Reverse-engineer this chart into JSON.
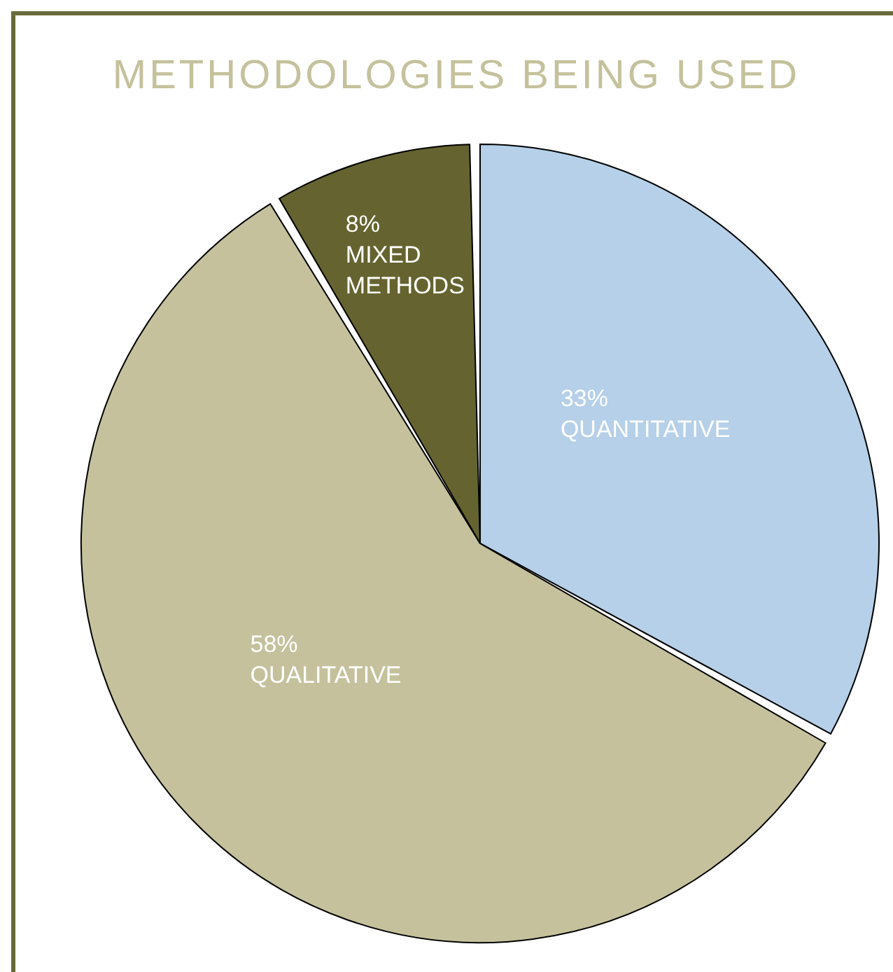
{
  "chart_data": {
    "type": "pie",
    "title": "METHODOLOGIES BEING USED",
    "categories": [
      "QUANTITATIVE",
      "QUALITATIVE",
      "MIXED METHODS"
    ],
    "values": [
      33,
      58,
      8
    ],
    "value_labels": [
      "33%",
      "58%",
      "8%"
    ],
    "colors": [
      "#b5d0e8",
      "#c5c19c",
      "#65632f"
    ],
    "legend": false
  }
}
